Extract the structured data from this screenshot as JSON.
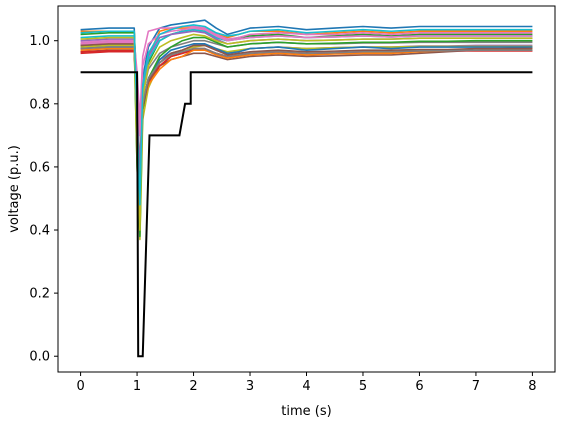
{
  "chart_data": {
    "type": "line",
    "title": "",
    "xlabel": "time (s)",
    "ylabel": "voltage (p.u.)",
    "xlim": [
      -0.4,
      8.4
    ],
    "ylim": [
      -0.05,
      1.11
    ],
    "xticks": [
      0,
      1,
      2,
      3,
      4,
      5,
      6,
      7,
      8
    ],
    "yticks": [
      0.0,
      0.2,
      0.4,
      0.6,
      0.8,
      1.0
    ],
    "grid": false,
    "legend": "none",
    "threshold": {
      "color": "#000000",
      "x": [
        0,
        1.0,
        1.0,
        1.02,
        1.02,
        1.1,
        1.1,
        1.22,
        1.22,
        1.75,
        1.75,
        1.85,
        1.85,
        1.95,
        1.95,
        8.0
      ],
      "y": [
        0.9,
        0.9,
        0.9,
        0.0,
        0.0,
        0.0,
        0.0,
        0.7,
        0.7,
        0.7,
        0.7,
        0.8,
        0.8,
        0.8,
        0.9,
        0.9
      ]
    },
    "x": [
      0,
      0.5,
      0.95,
      1.0,
      1.05,
      1.1,
      1.2,
      1.4,
      1.6,
      1.8,
      2.0,
      2.2,
      2.4,
      2.6,
      2.8,
      3.0,
      3.5,
      4.0,
      4.5,
      5.0,
      5.5,
      6.0,
      6.5,
      7.0,
      7.5,
      8.0
    ],
    "series": [
      {
        "color": "#1f77b4",
        "values": [
          1.035,
          1.04,
          1.04,
          0.7,
          0.45,
          0.88,
          0.98,
          1.04,
          1.05,
          1.055,
          1.06,
          1.065,
          1.04,
          1.02,
          1.03,
          1.04,
          1.045,
          1.035,
          1.04,
          1.045,
          1.04,
          1.045,
          1.045,
          1.045,
          1.045,
          1.045
        ]
      },
      {
        "color": "#ff7f0e",
        "values": [
          1.03,
          1.03,
          1.03,
          0.8,
          0.6,
          0.85,
          0.95,
          1.03,
          1.04,
          1.04,
          1.04,
          1.04,
          1.02,
          1.01,
          1.02,
          1.03,
          1.03,
          1.02,
          1.025,
          1.03,
          1.025,
          1.03,
          1.03,
          1.03,
          1.03,
          1.03
        ]
      },
      {
        "color": "#2ca02c",
        "values": [
          1.02,
          1.025,
          1.025,
          0.85,
          0.55,
          0.82,
          0.93,
          1.0,
          1.02,
          1.03,
          1.035,
          1.03,
          1.01,
          1.0,
          1.01,
          1.015,
          1.02,
          1.01,
          1.015,
          1.02,
          1.015,
          1.02,
          1.02,
          1.02,
          1.02,
          1.02
        ]
      },
      {
        "color": "#d62728",
        "values": [
          0.96,
          0.965,
          0.965,
          0.8,
          0.5,
          0.78,
          0.86,
          0.92,
          0.95,
          0.96,
          0.97,
          0.97,
          0.96,
          0.95,
          0.955,
          0.96,
          0.965,
          0.96,
          0.962,
          0.965,
          0.965,
          0.968,
          0.968,
          0.968,
          0.968,
          0.968
        ]
      },
      {
        "color": "#9467bd",
        "values": [
          0.98,
          0.985,
          0.985,
          0.75,
          0.5,
          0.8,
          0.88,
          0.94,
          0.96,
          0.97,
          0.985,
          0.985,
          0.97,
          0.96,
          0.965,
          0.975,
          0.98,
          0.975,
          0.978,
          0.98,
          0.98,
          0.983,
          0.983,
          0.985,
          0.985,
          0.985
        ]
      },
      {
        "color": "#8c564b",
        "values": [
          0.965,
          0.97,
          0.97,
          0.8,
          0.55,
          0.8,
          0.87,
          0.92,
          0.94,
          0.95,
          0.96,
          0.96,
          0.95,
          0.94,
          0.945,
          0.95,
          0.955,
          0.95,
          0.952,
          0.955,
          0.955,
          0.96,
          0.965,
          0.97,
          0.975,
          0.98
        ]
      },
      {
        "color": "#e377c2",
        "values": [
          0.995,
          1.0,
          1.0,
          0.9,
          0.75,
          0.95,
          1.03,
          1.04,
          1.04,
          1.045,
          1.045,
          1.04,
          1.02,
          1.005,
          1.01,
          1.02,
          1.025,
          1.02,
          1.02,
          1.025,
          1.02,
          1.025,
          1.025,
          1.025,
          1.025,
          1.025
        ]
      },
      {
        "color": "#7f7f7f",
        "values": [
          0.99,
          0.995,
          0.995,
          0.8,
          0.55,
          0.83,
          0.91,
          0.96,
          0.98,
          0.99,
          1.0,
          1.0,
          0.99,
          0.98,
          0.985,
          0.99,
          0.995,
          0.99,
          0.99,
          0.993,
          0.993,
          0.995,
          0.995,
          0.995,
          0.995,
          0.995
        ]
      },
      {
        "color": "#bcbd22",
        "values": [
          0.98,
          0.985,
          0.985,
          0.6,
          0.37,
          0.75,
          0.85,
          0.93,
          0.96,
          0.97,
          0.98,
          0.985,
          0.975,
          0.965,
          0.97,
          0.975,
          0.98,
          0.975,
          0.978,
          0.98,
          0.98,
          0.982,
          0.982,
          0.982,
          0.982,
          0.982
        ]
      },
      {
        "color": "#17becf",
        "values": [
          1.01,
          1.015,
          1.015,
          0.7,
          0.42,
          0.84,
          0.94,
          1.0,
          1.02,
          1.03,
          1.035,
          1.03,
          1.01,
          1.0,
          1.005,
          1.01,
          1.015,
          1.01,
          1.012,
          1.015,
          1.012,
          1.015,
          1.015,
          1.015,
          1.015,
          1.015
        ]
      },
      {
        "color": "#1f77b4",
        "values": [
          0.975,
          0.98,
          0.98,
          0.78,
          0.52,
          0.8,
          0.88,
          0.94,
          0.97,
          0.98,
          0.99,
          0.99,
          0.975,
          0.96,
          0.965,
          0.975,
          0.98,
          0.97,
          0.975,
          0.98,
          0.975,
          0.98,
          0.98,
          0.98,
          0.98,
          0.98
        ]
      },
      {
        "color": "#ff7f0e",
        "values": [
          0.97,
          0.975,
          0.975,
          0.77,
          0.5,
          0.79,
          0.86,
          0.91,
          0.94,
          0.95,
          0.97,
          0.97,
          0.955,
          0.945,
          0.95,
          0.955,
          0.96,
          0.955,
          0.958,
          0.96,
          0.96,
          0.965,
          0.968,
          0.97,
          0.972,
          0.975
        ]
      },
      {
        "color": "#2ca02c",
        "values": [
          0.985,
          0.99,
          0.99,
          0.6,
          0.38,
          0.78,
          0.88,
          0.95,
          0.98,
          1.0,
          1.01,
          1.01,
          0.995,
          0.98,
          0.985,
          0.99,
          0.995,
          0.99,
          0.992,
          0.995,
          0.995,
          0.998,
          0.998,
          1.0,
          1.0,
          1.0
        ]
      },
      {
        "color": "#d62728",
        "values": [
          0.965,
          0.968,
          0.968,
          0.76,
          0.52,
          0.8,
          0.87,
          0.92,
          0.95,
          0.96,
          0.975,
          0.975,
          0.96,
          0.95,
          0.955,
          0.96,
          0.965,
          0.96,
          0.962,
          0.965,
          0.965,
          0.968,
          0.968,
          0.968,
          0.968,
          0.968
        ]
      },
      {
        "color": "#9467bd",
        "values": [
          1.0,
          1.005,
          1.005,
          0.82,
          0.58,
          0.86,
          0.95,
          1.01,
          1.02,
          1.025,
          1.03,
          1.025,
          1.005,
          0.99,
          0.995,
          1.0,
          1.005,
          1.0,
          1.002,
          1.005,
          1.005,
          1.008,
          1.008,
          1.008,
          1.008,
          1.008
        ]
      },
      {
        "color": "#8c564b",
        "values": [
          0.985,
          0.99,
          0.99,
          0.76,
          0.48,
          0.79,
          0.87,
          0.93,
          0.96,
          0.97,
          0.985,
          0.985,
          0.97,
          0.955,
          0.96,
          0.965,
          0.97,
          0.965,
          0.967,
          0.97,
          0.97,
          0.972,
          0.972,
          0.975,
          0.975,
          0.975
        ]
      },
      {
        "color": "#e377c2",
        "values": [
          0.99,
          0.995,
          0.995,
          0.88,
          0.7,
          0.92,
          0.99,
          1.02,
          1.03,
          1.035,
          1.04,
          1.035,
          1.015,
          1.0,
          1.005,
          1.01,
          1.015,
          1.01,
          1.012,
          1.015,
          1.012,
          1.015,
          1.015,
          1.015,
          1.015,
          1.015
        ]
      },
      {
        "color": "#7f7f7f",
        "values": [
          0.975,
          0.98,
          0.98,
          0.74,
          0.5,
          0.8,
          0.88,
          0.93,
          0.955,
          0.965,
          0.975,
          0.975,
          0.96,
          0.95,
          0.955,
          0.96,
          0.965,
          0.96,
          0.962,
          0.965,
          0.965,
          0.968,
          0.968,
          0.97,
          0.97,
          0.97
        ]
      },
      {
        "color": "#bcbd22",
        "values": [
          1.005,
          1.01,
          1.01,
          0.64,
          0.4,
          0.82,
          0.92,
          0.98,
          1.0,
          1.01,
          1.02,
          1.015,
          1.0,
          0.99,
          0.995,
          1.0,
          1.005,
          1.0,
          1.002,
          1.005,
          1.005,
          1.008,
          1.008,
          1.008,
          1.008,
          1.008
        ]
      },
      {
        "color": "#17becf",
        "values": [
          1.025,
          1.03,
          1.03,
          0.75,
          0.48,
          0.86,
          0.96,
          1.02,
          1.035,
          1.045,
          1.05,
          1.045,
          1.025,
          1.015,
          1.02,
          1.03,
          1.035,
          1.025,
          1.03,
          1.035,
          1.03,
          1.035,
          1.035,
          1.035,
          1.035,
          1.035
        ]
      }
    ]
  }
}
